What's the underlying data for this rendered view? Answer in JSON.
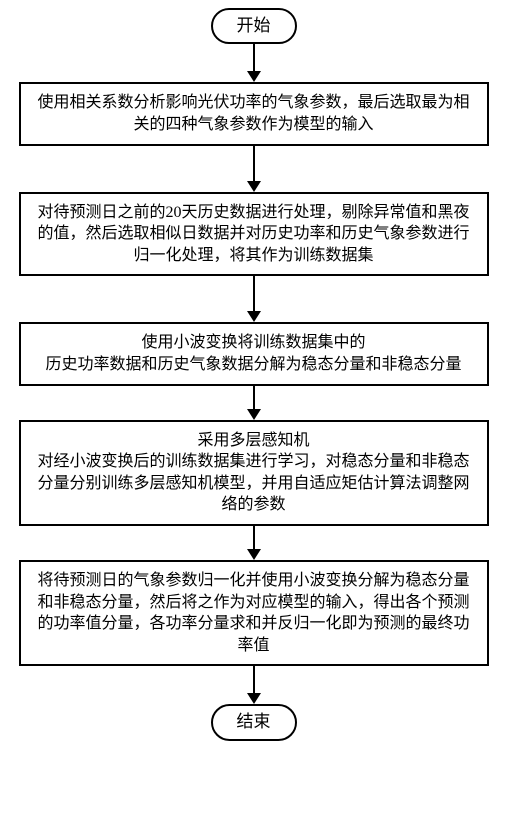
{
  "flowchart": {
    "type": "flowchart",
    "direction": "top-to-bottom",
    "background_color": "#ffffff",
    "border_color": "#000000",
    "border_width": 2,
    "text_color": "#000000",
    "font_family": "SimSun",
    "font_size": 16,
    "terminal_font_size": 17,
    "terminal_border_radius": 22,
    "process_width": 470,
    "arrow_color": "#000000",
    "arrow_head_size": 11,
    "nodes": [
      {
        "id": "start",
        "shape": "terminal",
        "label": "开始"
      },
      {
        "id": "n1",
        "shape": "process",
        "label": "使用相关系数分析影响光伏功率的气象参数，最后选取最为相关的四种气象参数作为模型的输入"
      },
      {
        "id": "n2",
        "shape": "process",
        "label": "对待预测日之前的20天历史数据进行处理，剔除异常值和黑夜的值，然后选取相似日数据并对历史功率和历史气象参数进行归一化处理，将其作为训练数据集"
      },
      {
        "id": "n3",
        "shape": "process",
        "label": "使用小波变换将训练数据集中的\n历史功率数据和历史气象数据分解为稳态分量和非稳态分量"
      },
      {
        "id": "n4",
        "shape": "process",
        "label": "采用多层感知机\n对经小波变换后的训练数据集进行学习，对稳态分量和非稳态分量分别训练多层感知机模型，并用自适应矩估计算法调整网络的参数"
      },
      {
        "id": "n5",
        "shape": "process",
        "label": "将待预测日的气象参数归一化并使用小波变换分解为稳态分量和非稳态分量，然后将之作为对应模型的输入，得出各个预测的功率值分量，各功率分量求和并反归一化即为预测的最终功率值"
      },
      {
        "id": "end",
        "shape": "terminal",
        "label": "结束"
      }
    ],
    "edges": [
      {
        "from": "start",
        "to": "n1",
        "length": 28
      },
      {
        "from": "n1",
        "to": "n2",
        "length": 36
      },
      {
        "from": "n2",
        "to": "n3",
        "length": 36
      },
      {
        "from": "n3",
        "to": "n4",
        "length": 24
      },
      {
        "from": "n4",
        "to": "n5",
        "length": 24
      },
      {
        "from": "n5",
        "to": "end",
        "length": 28
      }
    ]
  }
}
